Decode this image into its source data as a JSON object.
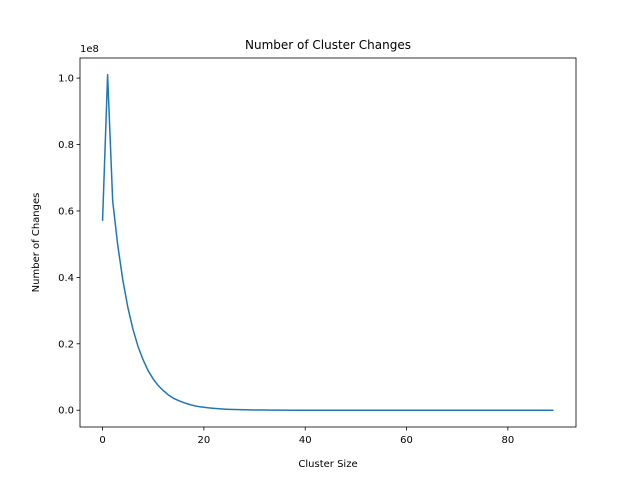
{
  "chart_data": {
    "type": "line",
    "title": "Number of Cluster Changes",
    "xlabel": "Cluster Size",
    "ylabel": "Number of Changes",
    "y_offset_label": "1e8",
    "xlim": [
      -4.45,
      93.45
    ],
    "ylim": [
      -0.0505,
      1.0605
    ],
    "x_ticks": [
      0,
      20,
      40,
      60,
      80
    ],
    "x_tick_labels": [
      "0",
      "20",
      "40",
      "60",
      "80"
    ],
    "y_ticks": [
      0.0,
      0.2,
      0.4,
      0.6,
      0.8,
      1.0
    ],
    "y_tick_labels": [
      "0.0",
      "0.2",
      "0.4",
      "0.6",
      "0.8",
      "1.0"
    ],
    "grid": false,
    "series": [
      {
        "color": "#1f77b4",
        "x": [
          0,
          1,
          2,
          3,
          4,
          5,
          6,
          7,
          8,
          9,
          10,
          11,
          12,
          13,
          14,
          15,
          16,
          17,
          18,
          19,
          20,
          21,
          22,
          23,
          24,
          25,
          26,
          27,
          28,
          29,
          30,
          31,
          32,
          33,
          34,
          35,
          36,
          37,
          38,
          39,
          40,
          41,
          42,
          43,
          44,
          45,
          46,
          47,
          48,
          49,
          50,
          51,
          52,
          53,
          54,
          55,
          56,
          57,
          58,
          59,
          60,
          61,
          62,
          63,
          64,
          65,
          66,
          67,
          68,
          69,
          70,
          71,
          72,
          73,
          74,
          75,
          76,
          77,
          78,
          79,
          80,
          81,
          82,
          83,
          84,
          85,
          86,
          87,
          88,
          89
        ],
        "y": [
          0.57,
          1.01,
          0.63,
          0.497,
          0.392,
          0.309,
          0.244,
          0.192,
          0.152,
          0.119,
          0.094,
          0.074,
          0.059,
          0.046,
          0.036,
          0.029,
          0.023,
          0.018,
          0.014,
          0.011,
          0.009,
          0.007,
          0.0055,
          0.0043,
          0.0034,
          0.0027,
          0.0021,
          0.0017,
          0.0013,
          0.001,
          0.0008,
          0.0006,
          0.0005,
          0.0004,
          0.0003,
          0.0002,
          0.0002,
          0.0001,
          0.0001,
          0.0001,
          0.0001,
          0,
          0,
          0,
          0,
          0,
          0,
          0,
          0,
          0,
          0,
          0,
          0,
          0,
          0,
          0,
          0,
          0,
          0,
          0,
          0,
          0,
          0,
          0,
          0,
          0,
          0,
          0,
          0,
          0,
          0,
          0,
          0,
          0,
          0,
          0,
          0,
          0,
          0,
          0,
          0,
          0,
          0,
          0,
          0,
          0,
          0,
          0,
          0,
          0
        ]
      }
    ]
  }
}
